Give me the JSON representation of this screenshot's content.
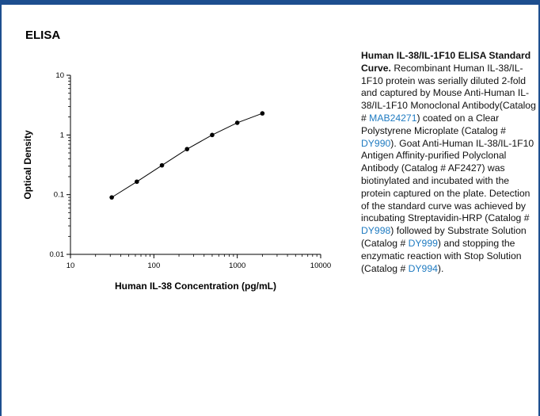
{
  "section_title": "ELISA",
  "chart_data": {
    "type": "line",
    "xlabel": "Human IL-38 Concentration (pg/mL)",
    "ylabel": "Optical Density",
    "x_scale": "log",
    "y_scale": "log",
    "xlim": [
      10,
      10000
    ],
    "ylim": [
      0.01,
      10
    ],
    "x_ticks": [
      10,
      100,
      1000,
      10000
    ],
    "x_tick_labels": [
      "10",
      "100",
      "1000",
      "10000"
    ],
    "y_ticks": [
      0.01,
      0.1,
      1,
      10
    ],
    "y_tick_labels": [
      "0.01",
      "0.1",
      "1",
      "10"
    ],
    "grid": false,
    "series": [
      {
        "x": [
          31.25,
          62.5,
          125,
          250,
          500,
          1000,
          2000
        ],
        "y": [
          0.09,
          0.165,
          0.31,
          0.58,
          1.0,
          1.6,
          2.3
        ]
      }
    ]
  },
  "caption": {
    "title": "Human IL-38/IL-1F10 ELISA Standard Curve.",
    "t1": " Recombinant Human IL-38/IL-1F10 protein was serially diluted 2-fold and captured by Mouse Anti-Human IL-38/IL-1F10 Monoclonal Antibody(Catalog # ",
    "link1": "MAB24271",
    "t2": ") coated on a Clear Polystyrene Microplate (Catalog # ",
    "link2": "DY990",
    "t3": "). Goat Anti-Human IL-38/IL-1F10 Antigen Affinity-purified Polyclonal Antibody (Catalog # AF2427) was biotinylated and incubated with the protein captured on the plate. Detection of the standard curve was achieved by incubating Streptavidin-HRP (Catalog # ",
    "link3": "DY998",
    "t4": ") followed by Substrate Solution (Catalog # ",
    "link4": "DY999",
    "t5": ") and stopping the enzymatic reaction with Stop Solution (Catalog # ",
    "link5": "DY994",
    "t6": ")."
  }
}
